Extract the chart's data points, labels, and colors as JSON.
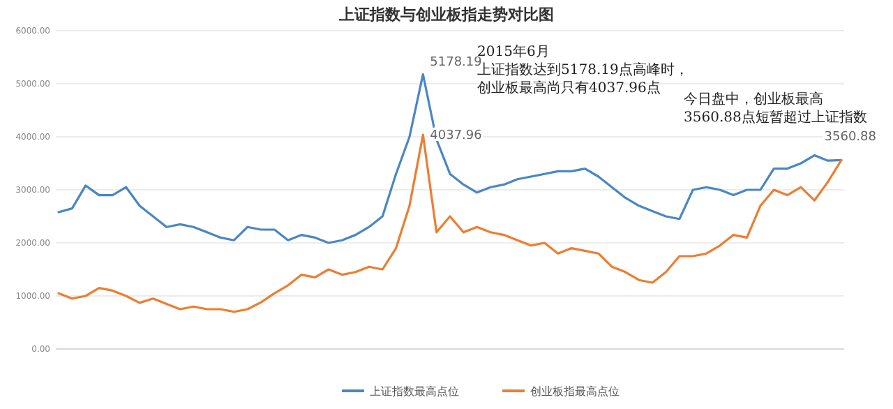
{
  "chart_data": {
    "type": "line",
    "title": "上证指数与创业板指走势对比图",
    "categories": [
      null,
      null,
      null,
      null,
      null,
      null,
      null,
      null,
      null,
      null,
      null,
      null,
      null,
      null,
      null,
      null,
      null,
      null,
      null,
      null,
      null,
      null,
      null,
      null,
      null,
      null,
      null,
      null,
      null,
      null,
      null,
      null,
      null,
      null,
      null,
      null,
      null,
      null,
      null,
      null,
      null,
      null,
      null,
      null,
      null,
      null,
      null,
      null,
      null,
      null,
      null,
      null,
      null,
      null,
      null,
      null,
      null,
      null,
      null
    ],
    "series": [
      {
        "name": "上证指数最高点位",
        "color": "#4a86c5",
        "values": [
          2580,
          2650,
          3080,
          2900,
          2900,
          3050,
          2700,
          2500,
          2300,
          2350,
          2300,
          2200,
          2100,
          2050,
          2300,
          2250,
          2250,
          2050,
          2150,
          2100,
          2000,
          2050,
          2150,
          2300,
          2500,
          3300,
          4000,
          5178.19,
          3950,
          3300,
          3100,
          2950,
          3050,
          3100,
          3200,
          3250,
          3300,
          3350,
          3350,
          3400,
          3250,
          3050,
          2850,
          2700,
          2600,
          2500,
          2450,
          3000,
          3050,
          3000,
          2900,
          3000,
          3000,
          3400,
          3400,
          3500,
          3650,
          3550,
          3560
        ],
        "value_labels": [
          null,
          null,
          null,
          null,
          null,
          null,
          null,
          null,
          null,
          null,
          null,
          null,
          null,
          null,
          null,
          null,
          null,
          null,
          null,
          null,
          null,
          null,
          null,
          null,
          null,
          null,
          null,
          "5178.19",
          null,
          null,
          null,
          null,
          null,
          null,
          null,
          null,
          null,
          null,
          null,
          null,
          null,
          null,
          null,
          null,
          null,
          null,
          null,
          null,
          null,
          null,
          null,
          null,
          null,
          null,
          null,
          null,
          null,
          null,
          null
        ]
      },
      {
        "name": "创业板指最高点位",
        "color": "#ed7d31",
        "values": [
          1050,
          950,
          1000,
          1150,
          1100,
          1000,
          870,
          950,
          850,
          750,
          800,
          750,
          750,
          700,
          750,
          880,
          1050,
          1200,
          1400,
          1350,
          1500,
          1400,
          1450,
          1550,
          1500,
          1900,
          2700,
          4037.96,
          2200,
          2500,
          2200,
          2300,
          2200,
          2150,
          2050,
          1950,
          2000,
          1800,
          1900,
          1850,
          1800,
          1550,
          1450,
          1300,
          1250,
          1450,
          1750,
          1750,
          1800,
          1950,
          2150,
          2100,
          2700,
          3000,
          2900,
          3050,
          2800,
          3150,
          3560.88
        ],
        "value_labels": [
          null,
          null,
          null,
          null,
          null,
          null,
          null,
          null,
          null,
          null,
          null,
          null,
          null,
          null,
          null,
          null,
          null,
          null,
          null,
          null,
          null,
          null,
          null,
          null,
          null,
          null,
          null,
          "4037.96",
          null,
          null,
          null,
          null,
          null,
          null,
          null,
          null,
          null,
          null,
          null,
          null,
          null,
          null,
          null,
          null,
          null,
          null,
          null,
          null,
          null,
          null,
          null,
          null,
          null,
          null,
          null,
          null,
          null,
          null,
          "3560.88"
        ]
      }
    ],
    "annotations": [
      "2015年6月",
      "上证指数达到5178.19点高峰时，",
      "创业板最高尚只有4037.96点",
      "今日盘中，创业板最高",
      "3560.88点短暂超过上证指数"
    ],
    "ylim": [
      0,
      6000
    ],
    "yticks": [
      {
        "value": 0,
        "label": "0.00"
      },
      {
        "value": 1000,
        "label": "1000.00"
      },
      {
        "value": 2000,
        "label": "2000.00"
      },
      {
        "value": 3000,
        "label": "3000.00"
      },
      {
        "value": 4000,
        "label": "4000.00"
      },
      {
        "value": 5000,
        "label": "5000.00"
      },
      {
        "value": 6000,
        "label": "6000.00"
      }
    ],
    "grid": "y",
    "legend": "bottom",
    "tick_labels": "y",
    "line_style": "solid"
  }
}
